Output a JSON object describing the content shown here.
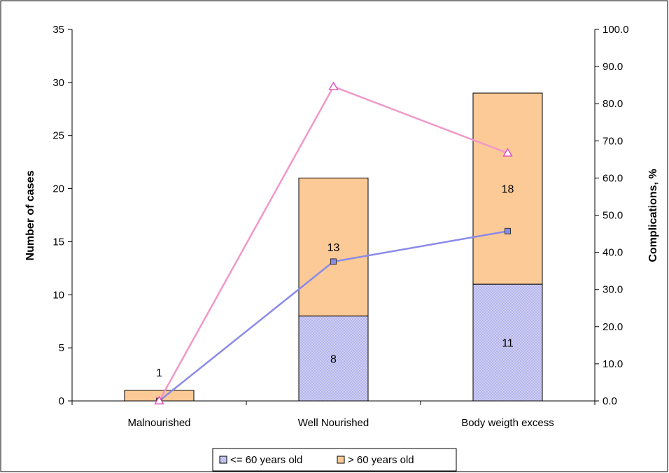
{
  "chart_data": {
    "type": "bar",
    "stacked": true,
    "categories": [
      "Malnourished",
      "Well Nourished",
      "Body weigth excess"
    ],
    "series": [
      {
        "name": "<= 60 years old",
        "values": [
          0,
          8,
          11
        ],
        "axis": "left",
        "color": "#c9c9f3",
        "pattern": "crosshatch"
      },
      {
        "name": "> 60 years old",
        "values": [
          1,
          13,
          18
        ],
        "axis": "left",
        "color": "#fcca96"
      }
    ],
    "line_series": [
      {
        "values": [
          0.0,
          37.5,
          45.7
        ],
        "axis": "right",
        "color": "#8a8ae8",
        "marker": "square",
        "marker_fill": "#8a8ae8"
      },
      {
        "values": [
          0.0,
          84.6,
          66.7
        ],
        "axis": "right",
        "color": "#f098c8",
        "marker": "triangle",
        "marker_stroke": "#e040c0"
      }
    ],
    "bar_labels": [
      {
        "category": 0,
        "series": 1,
        "text": "1",
        "placement": "above"
      },
      {
        "category": 1,
        "series": 0,
        "text": "8"
      },
      {
        "category": 1,
        "series": 1,
        "text": "13"
      },
      {
        "category": 2,
        "series": 0,
        "text": "11"
      },
      {
        "category": 2,
        "series": 1,
        "text": "18"
      }
    ],
    "ylabel": "Number of cases",
    "ylabel_right": "Complications, %",
    "ylim": [
      0,
      35
    ],
    "ylim_right": [
      0,
      100
    ],
    "yticks": [
      "0",
      "5",
      "10",
      "15",
      "20",
      "25",
      "30",
      "35"
    ],
    "yticks_right": [
      "0.0",
      "10.0",
      "20.0",
      "30.0",
      "40.0",
      "50.0",
      "60.0",
      "70.0",
      "80.0",
      "90.0",
      "100.0"
    ],
    "legend": {
      "placement": "bottom-center",
      "items": [
        "<= 60 years old",
        "> 60 years old"
      ]
    },
    "grid": false
  }
}
